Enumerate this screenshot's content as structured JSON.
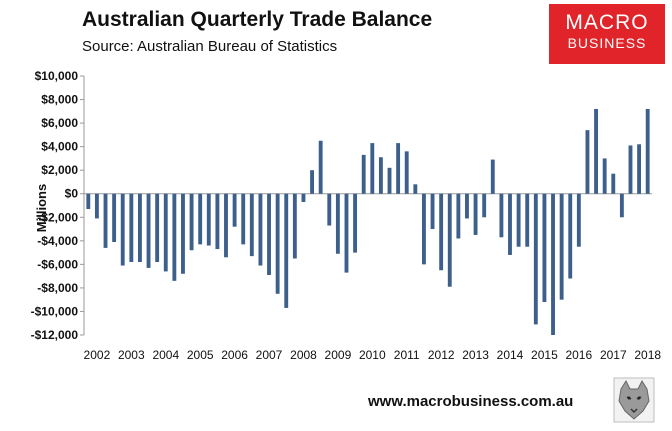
{
  "header": {
    "title": "Australian Quarterly Trade Balance",
    "subtitle": "Source: Australian Bureau of Statistics"
  },
  "logo": {
    "line1": "MACRO",
    "line2": "BUSINESS",
    "color": "#e0242a"
  },
  "footer": {
    "url": "www.macrobusiness.com.au"
  },
  "icons": {
    "watermark": "wolf-icon"
  },
  "chart_data": {
    "type": "bar",
    "title": "Australian Quarterly Trade Balance",
    "ylabel": "Millions",
    "xlabel": "",
    "ylim": [
      -12000,
      10000
    ],
    "yticks": [
      10000,
      8000,
      6000,
      4000,
      2000,
      0,
      -2000,
      -4000,
      -6000,
      -8000,
      -10000,
      -12000
    ],
    "ytick_labels": [
      "$10,000",
      "$8,000",
      "$6,000",
      "$4,000",
      "$2,000",
      "$0",
      "-$2,000",
      "-$4,000",
      "-$6,000",
      "-$8,000",
      "-$10,000",
      "-$12,000"
    ],
    "xtick_labels": [
      "2002",
      "2003",
      "2004",
      "2005",
      "2006",
      "2007",
      "2008",
      "2009",
      "2010",
      "2011",
      "2012",
      "2013",
      "2014",
      "2015",
      "2016",
      "2017",
      "2018"
    ],
    "grid": false,
    "bar_color": "#3d5f8c",
    "categories": [
      "2002-Q1",
      "2002-Q2",
      "2002-Q3",
      "2002-Q4",
      "2003-Q1",
      "2003-Q2",
      "2003-Q3",
      "2003-Q4",
      "2004-Q1",
      "2004-Q2",
      "2004-Q3",
      "2004-Q4",
      "2005-Q1",
      "2005-Q2",
      "2005-Q3",
      "2005-Q4",
      "2006-Q1",
      "2006-Q2",
      "2006-Q3",
      "2006-Q4",
      "2007-Q1",
      "2007-Q2",
      "2007-Q3",
      "2007-Q4",
      "2008-Q1",
      "2008-Q2",
      "2008-Q3",
      "2008-Q4",
      "2009-Q1",
      "2009-Q2",
      "2009-Q3",
      "2009-Q4",
      "2010-Q1",
      "2010-Q2",
      "2010-Q3",
      "2010-Q4",
      "2011-Q1",
      "2011-Q2",
      "2011-Q3",
      "2011-Q4",
      "2012-Q1",
      "2012-Q2",
      "2012-Q3",
      "2012-Q4",
      "2013-Q1",
      "2013-Q2",
      "2013-Q3",
      "2013-Q4",
      "2014-Q1",
      "2014-Q2",
      "2014-Q3",
      "2014-Q4",
      "2015-Q1",
      "2015-Q2",
      "2015-Q3",
      "2015-Q4",
      "2016-Q1",
      "2016-Q2",
      "2016-Q3",
      "2016-Q4",
      "2017-Q1",
      "2017-Q2",
      "2017-Q3",
      "2017-Q4",
      "2018-Q1",
      "2018-Q2"
    ],
    "values": [
      -1300,
      -2100,
      -4600,
      -4100,
      -6100,
      -5800,
      -5800,
      -6300,
      -5800,
      -6600,
      -7400,
      -6800,
      -4800,
      -4300,
      -4400,
      -4700,
      -5400,
      -2800,
      -4300,
      -5300,
      -6100,
      -6900,
      -8500,
      -9700,
      -5500,
      -700,
      2000,
      4500,
      -2700,
      -5100,
      -6700,
      -5000,
      3300,
      4300,
      3100,
      2200,
      4300,
      3600,
      800,
      -6000,
      -3000,
      -6500,
      -7900,
      -3800,
      -2100,
      -3500,
      -2000,
      2900,
      -3700,
      -5200,
      -4500,
      -4500,
      -11100,
      -9200,
      -12000,
      -9000,
      -7200,
      -4500,
      5400,
      7200,
      3000,
      1700,
      -2000,
      4100,
      4200,
      7200
    ]
  }
}
